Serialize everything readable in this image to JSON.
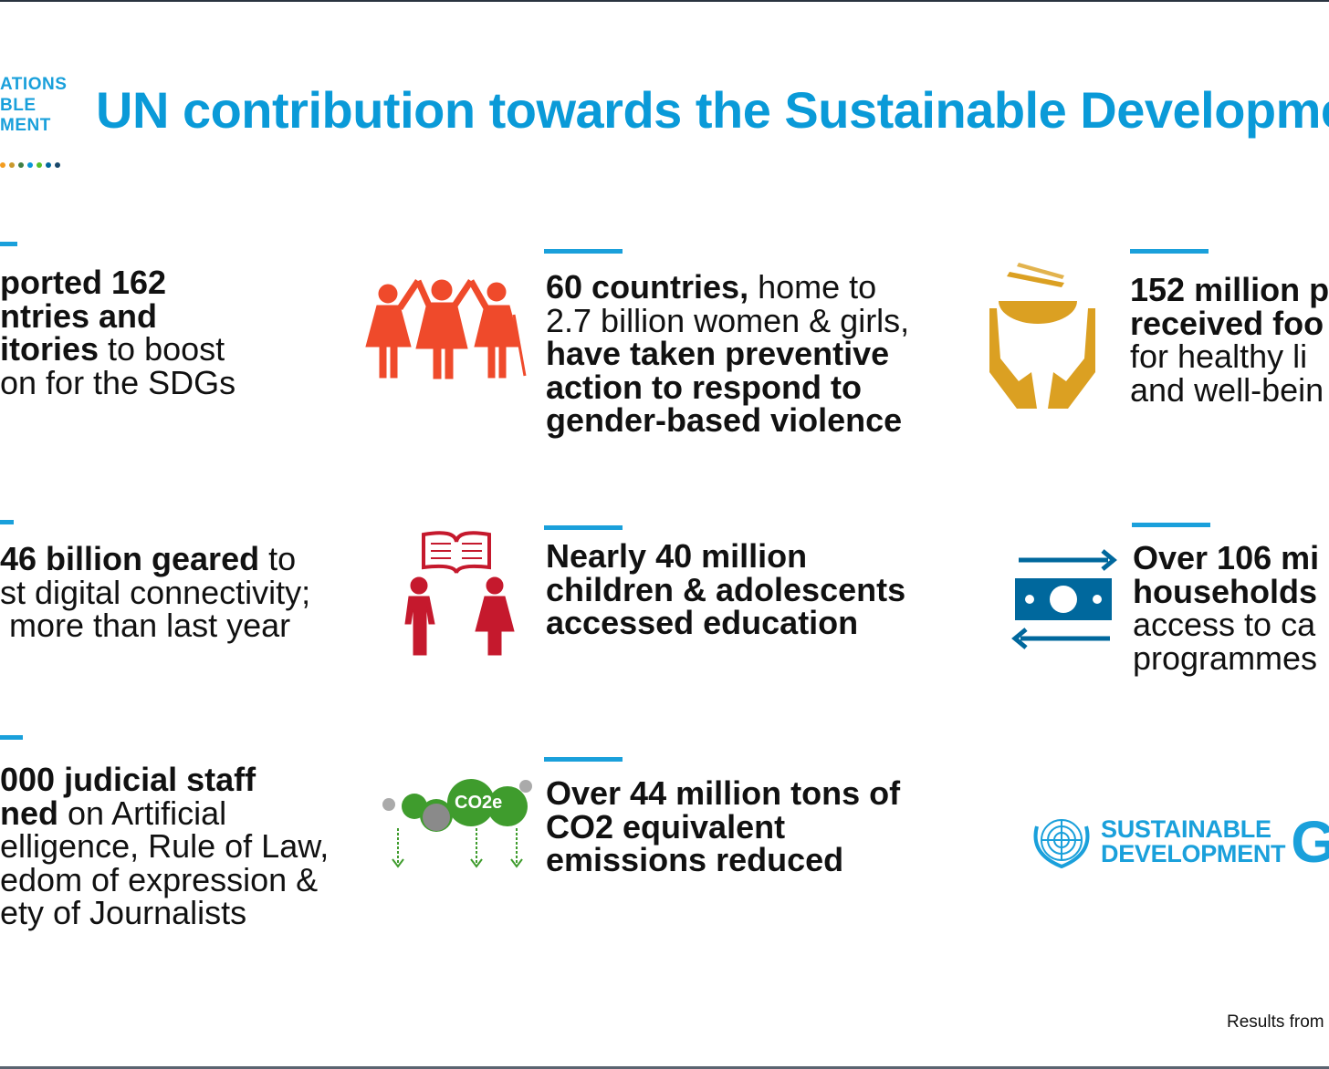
{
  "header": {
    "logo_lines": [
      "ATIONS",
      "BLE",
      "MENT"
    ],
    "logo_dot_colors": [
      "#f39c1f",
      "#c9992d",
      "#3f7e44",
      "#0a97d9",
      "#56c02b",
      "#00689d",
      "#19486a"
    ],
    "title": "UN contribution towards the Sustainable Developme"
  },
  "accent_color": "#1aa0db",
  "cards": [
    {
      "id": "countries",
      "lines": [
        [
          {
            "t": "ported 162",
            "b": true
          }
        ],
        [
          {
            "t": "ntries and",
            "b": true
          }
        ],
        [
          {
            "t": "itories",
            "b": true
          },
          {
            "t": " to boost",
            "b": false
          }
        ],
        [
          {
            "t": "on for the SDGs",
            "b": false
          }
        ]
      ]
    },
    {
      "id": "gender",
      "icon": "women-girls-icon",
      "lines": [
        [
          {
            "t": "60 countries,",
            "b": true
          },
          {
            "t": " home to",
            "b": false
          }
        ],
        [
          {
            "t": "2.7 billion women & girls,",
            "b": false
          }
        ],
        [
          {
            "t": "have taken preventive",
            "b": true
          }
        ],
        [
          {
            "t": "action to respond to",
            "b": true
          }
        ],
        [
          {
            "t": "gender-based violence",
            "b": true
          }
        ]
      ]
    },
    {
      "id": "food",
      "icon": "food-hands-icon",
      "lines": [
        [
          {
            "t": "152 million p",
            "b": true
          }
        ],
        [
          {
            "t": "received foo",
            "b": true
          }
        ],
        [
          {
            "t": "for healthy li",
            "b": false
          }
        ],
        [
          {
            "t": "and well-bein",
            "b": false
          }
        ]
      ]
    },
    {
      "id": "digital",
      "lines": [
        [
          {
            "t": "46 billion geared",
            "b": true
          },
          {
            "t": " to",
            "b": false
          }
        ],
        [
          {
            "t": "st digital connectivity;",
            "b": false
          }
        ],
        [
          {
            "t": " more than last year",
            "b": false
          }
        ]
      ]
    },
    {
      "id": "education",
      "icon": "children-book-icon",
      "lines": [
        [
          {
            "t": "Nearly 40 million",
            "b": true
          }
        ],
        [
          {
            "t": "children & adolescents",
            "b": true
          }
        ],
        [
          {
            "t": "accessed education",
            "b": true
          }
        ]
      ]
    },
    {
      "id": "cash",
      "icon": "cash-transfer-icon",
      "lines": [
        [
          {
            "t": "Over 106 mi",
            "b": true
          }
        ],
        [
          {
            "t": "households",
            "b": true
          }
        ],
        [
          {
            "t": "access to ca",
            "b": false
          }
        ],
        [
          {
            "t": "programmes",
            "b": false
          }
        ]
      ]
    },
    {
      "id": "judicial",
      "lines": [
        [
          {
            "t": "000 judicial staff",
            "b": true
          }
        ],
        [
          {
            "t": "ned",
            "b": true
          },
          {
            "t": " on Artificial",
            "b": false
          }
        ],
        [
          {
            "t": "elligence, Rule of Law,",
            "b": false
          }
        ],
        [
          {
            "t": "edom of expression &",
            "b": false
          }
        ],
        [
          {
            "t": "ety of Journalists",
            "b": false
          }
        ]
      ]
    },
    {
      "id": "co2",
      "icon": "co2-cloud-icon",
      "icon_text": "CO2e",
      "lines": [
        [
          {
            "t": "Over 44 million tons of",
            "b": true
          }
        ],
        [
          {
            "t": "CO2 equivalent",
            "b": true
          }
        ],
        [
          {
            "t": "emissions reduced",
            "b": true
          }
        ]
      ]
    }
  ],
  "sdg_logo": {
    "line1": "SUSTAINABLE",
    "line2": "DEVELOPMENT",
    "letter": "G"
  },
  "footer": "Results from"
}
